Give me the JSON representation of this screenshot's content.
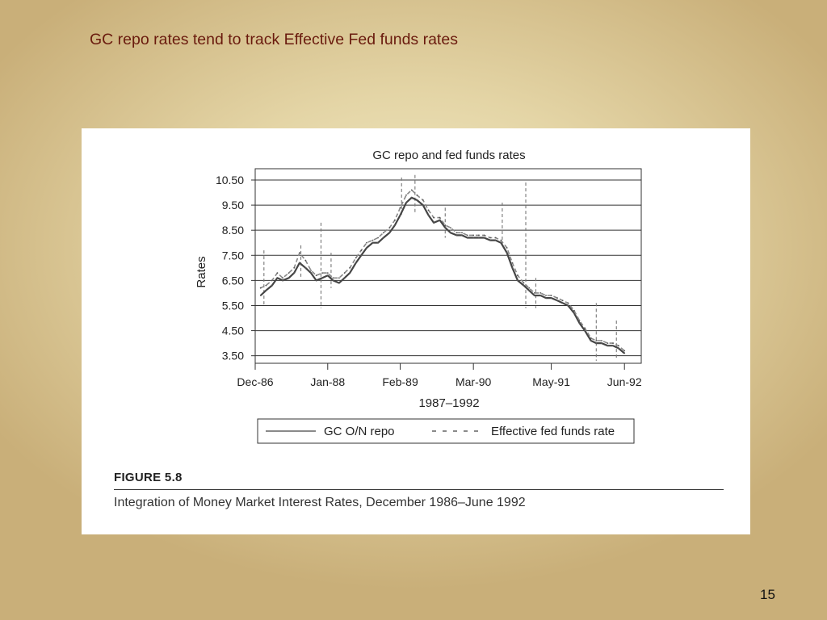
{
  "slide": {
    "title": "GC repo rates tend to track Effective Fed funds rates",
    "page_number": "15"
  },
  "figure": {
    "label": "FIGURE 5.8",
    "caption": "Integration of Money Market Interest Rates, December 1986–June 1992"
  },
  "chart_data": {
    "type": "line",
    "title": "GC repo and fed funds rates",
    "xlabel": "1987–1992",
    "ylabel": "Rates",
    "x_tick_labels": [
      "Dec-86",
      "Jan-88",
      "Feb-89",
      "Mar-90",
      "May-91",
      "Jun-92"
    ],
    "x_tick_years": [
      1986.92,
      1988.0,
      1989.08,
      1990.17,
      1991.33,
      1992.42
    ],
    "xlim": [
      1986.92,
      1992.67
    ],
    "y_tick_labels": [
      "10.50",
      "9.50",
      "8.50",
      "7.50",
      "6.50",
      "5.50",
      "4.50",
      "3.50"
    ],
    "ylim": [
      3.2,
      10.95
    ],
    "grid": true,
    "legend_position": "bottom",
    "series": [
      {
        "name": "GC O/N repo",
        "style": "solid",
        "color": "#444444",
        "x": [
          1987.0,
          1987.08,
          1987.17,
          1987.25,
          1987.33,
          1987.42,
          1987.5,
          1987.58,
          1987.67,
          1987.75,
          1987.83,
          1987.92,
          1988.0,
          1988.08,
          1988.17,
          1988.25,
          1988.33,
          1988.42,
          1988.5,
          1988.58,
          1988.67,
          1988.75,
          1988.83,
          1988.92,
          1989.0,
          1989.08,
          1989.17,
          1989.25,
          1989.33,
          1989.42,
          1989.5,
          1989.58,
          1989.67,
          1989.75,
          1989.83,
          1989.92,
          1990.0,
          1990.08,
          1990.17,
          1990.25,
          1990.33,
          1990.42,
          1990.5,
          1990.58,
          1990.67,
          1990.75,
          1990.83,
          1990.92,
          1991.0,
          1991.08,
          1991.17,
          1991.25,
          1991.33,
          1991.42,
          1991.5,
          1991.58,
          1991.67,
          1991.75,
          1991.83,
          1991.92,
          1992.0,
          1992.08,
          1992.17,
          1992.25,
          1992.33,
          1992.42
        ],
        "values": [
          5.9,
          6.1,
          6.3,
          6.6,
          6.5,
          6.6,
          6.8,
          7.2,
          7.0,
          6.8,
          6.5,
          6.6,
          6.7,
          6.5,
          6.4,
          6.6,
          6.8,
          7.2,
          7.5,
          7.8,
          8.0,
          8.0,
          8.2,
          8.4,
          8.7,
          9.1,
          9.6,
          9.8,
          9.7,
          9.5,
          9.1,
          8.8,
          8.9,
          8.6,
          8.4,
          8.3,
          8.3,
          8.2,
          8.2,
          8.2,
          8.2,
          8.1,
          8.1,
          8.0,
          7.6,
          7.0,
          6.5,
          6.3,
          6.1,
          5.9,
          5.9,
          5.8,
          5.8,
          5.7,
          5.6,
          5.5,
          5.2,
          4.8,
          4.5,
          4.1,
          4.0,
          4.0,
          3.9,
          3.9,
          3.8,
          3.6
        ]
      },
      {
        "name": "Effective fed funds rate",
        "style": "dashed",
        "color": "#444444",
        "x": [
          1987.0,
          1987.08,
          1987.17,
          1987.25,
          1987.33,
          1987.42,
          1987.5,
          1987.58,
          1987.67,
          1987.75,
          1987.83,
          1987.92,
          1988.0,
          1988.08,
          1988.17,
          1988.25,
          1988.33,
          1988.42,
          1988.5,
          1988.58,
          1988.67,
          1988.75,
          1988.83,
          1988.92,
          1989.0,
          1989.08,
          1989.17,
          1989.25,
          1989.33,
          1989.42,
          1989.5,
          1989.58,
          1989.67,
          1989.75,
          1989.83,
          1989.92,
          1990.0,
          1990.08,
          1990.17,
          1990.25,
          1990.33,
          1990.42,
          1990.5,
          1990.58,
          1990.67,
          1990.75,
          1990.83,
          1990.92,
          1991.0,
          1991.08,
          1991.17,
          1991.25,
          1991.33,
          1991.42,
          1991.5,
          1991.58,
          1991.67,
          1991.75,
          1991.83,
          1991.92,
          1992.0,
          1992.08,
          1992.17,
          1992.25,
          1992.33,
          1992.42
        ],
        "values": [
          6.2,
          6.3,
          6.5,
          6.8,
          6.6,
          6.8,
          7.0,
          7.6,
          7.3,
          6.9,
          6.7,
          6.8,
          6.8,
          6.6,
          6.6,
          6.8,
          7.0,
          7.4,
          7.7,
          8.0,
          8.1,
          8.2,
          8.4,
          8.6,
          8.9,
          9.4,
          9.9,
          10.1,
          9.9,
          9.7,
          9.3,
          9.0,
          9.0,
          8.7,
          8.6,
          8.4,
          8.4,
          8.3,
          8.3,
          8.3,
          8.3,
          8.2,
          8.2,
          8.1,
          7.8,
          7.2,
          6.7,
          6.4,
          6.2,
          6.0,
          6.0,
          5.9,
          5.9,
          5.8,
          5.7,
          5.6,
          5.3,
          4.9,
          4.6,
          4.2,
          4.1,
          4.1,
          4.0,
          4.0,
          3.9,
          3.7
        ]
      }
    ],
    "spikes": [
      {
        "x": 1987.05,
        "low": 5.5,
        "high": 7.7
      },
      {
        "x": 1987.6,
        "low": 6.6,
        "high": 7.9
      },
      {
        "x": 1987.9,
        "low": 5.4,
        "high": 8.8
      },
      {
        "x": 1988.05,
        "low": 6.2,
        "high": 7.6
      },
      {
        "x": 1989.1,
        "low": 9.1,
        "high": 10.6
      },
      {
        "x": 1989.3,
        "low": 9.2,
        "high": 10.7
      },
      {
        "x": 1989.75,
        "low": 8.2,
        "high": 9.4
      },
      {
        "x": 1990.6,
        "low": 7.8,
        "high": 9.6
      },
      {
        "x": 1990.95,
        "low": 5.4,
        "high": 10.4
      },
      {
        "x": 1991.1,
        "low": 5.4,
        "high": 6.6
      },
      {
        "x": 1992.0,
        "low": 3.3,
        "high": 5.6
      },
      {
        "x": 1992.3,
        "low": 3.4,
        "high": 4.9
      }
    ]
  }
}
